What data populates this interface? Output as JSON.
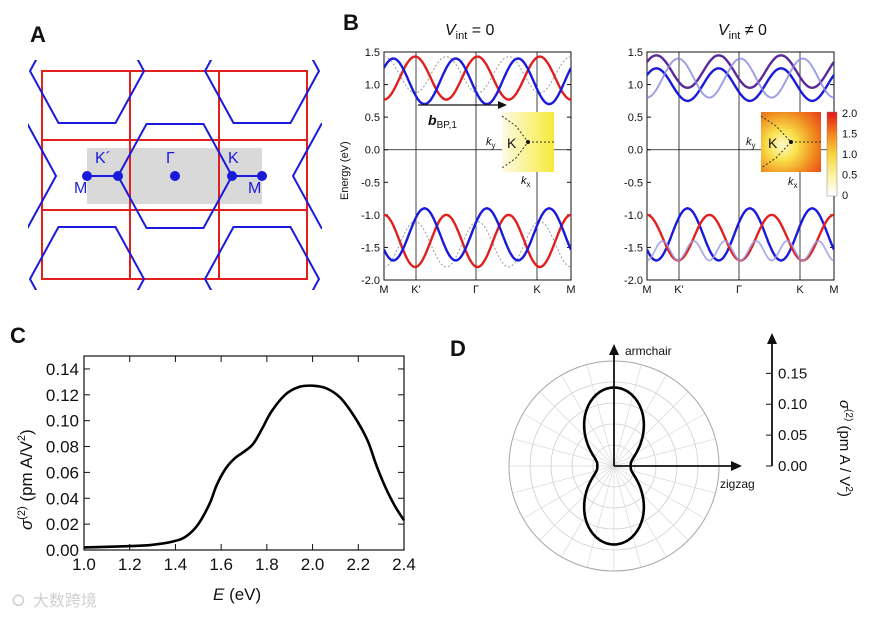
{
  "panel_labels": {
    "a": "A",
    "b": "B",
    "c": "C",
    "d": "D"
  },
  "panel_a": {
    "points": {
      "kprime": "K´",
      "gamma": "Γ",
      "k": "K",
      "m_left": "M",
      "m_right": "M"
    },
    "colors": {
      "hexagons": "#1a1adb",
      "rectangles": "#e0201f",
      "path": "#1a1adb",
      "shaded": "#d9d9d9"
    }
  },
  "panel_b": {
    "title_left_sym": "V",
    "title_left_sub": "int",
    "title_left_rest": " = 0",
    "title_right_sym": "V",
    "title_right_sub": "int",
    "title_right_rest": " ≠ 0",
    "ylabel": "Energy (eV)",
    "yticks": [
      "1.5",
      "1.0",
      "0.5",
      "0.0",
      "-0.5",
      "-1.0",
      "-1.5",
      "-2.0"
    ],
    "xticks": [
      "M",
      "K'",
      "Γ",
      "K",
      "M"
    ],
    "arrow_label_sym": "b",
    "arrow_label_sub": "BP,1",
    "inset_ky": "k",
    "inset_ky_sub": "y",
    "inset_kx": "k",
    "inset_kx_sub": "x",
    "inset_k": "K",
    "colorbar_ticks": [
      "2.0",
      "1.5",
      "1.0",
      "0.5",
      "0"
    ]
  },
  "panel_c": {
    "ylabel_sym": "σ",
    "ylabel_sup": "(2)",
    "ylabel_rest": " (pm A/V",
    "ylabel_sup2": "2",
    "ylabel_end": ")",
    "xlabel_sym": "E",
    "xlabel_rest": " (eV)"
  },
  "panel_d": {
    "axis_armchair": "armchair",
    "axis_zigzag": "zigzag",
    "ylabel_sym": "σ",
    "ylabel_sup": "(2)",
    "ylabel_rest": " (pm A / V",
    "ylabel_sup2": "2",
    "ylabel_end": ")",
    "scale_ticks": [
      "0.15",
      "0.10",
      "0.05",
      "0.00"
    ]
  },
  "watermark": "大数跨境",
  "chart_data": [
    {
      "type": "line",
      "title": "",
      "xlabel": "E (eV)",
      "ylabel": "σ(2) (pm A/V2)",
      "xlim": [
        1.0,
        2.4
      ],
      "ylim": [
        0.0,
        0.15
      ],
      "xticks": [
        "1.0",
        "1.2",
        "1.4",
        "1.6",
        "1.8",
        "2.0",
        "2.2",
        "2.4"
      ],
      "yticks": [
        "0.00",
        "0.02",
        "0.04",
        "0.06",
        "0.08",
        "0.10",
        "0.12",
        "0.14"
      ],
      "x": [
        1.0,
        1.1,
        1.2,
        1.3,
        1.4,
        1.45,
        1.5,
        1.55,
        1.58,
        1.62,
        1.66,
        1.7,
        1.74,
        1.78,
        1.82,
        1.88,
        1.94,
        2.0,
        2.06,
        2.12,
        2.18,
        2.24,
        2.28,
        2.32,
        2.36,
        2.4
      ],
      "y": [
        0.002,
        0.0025,
        0.003,
        0.004,
        0.007,
        0.011,
        0.02,
        0.036,
        0.05,
        0.063,
        0.071,
        0.076,
        0.082,
        0.094,
        0.107,
        0.12,
        0.126,
        0.127,
        0.125,
        0.118,
        0.104,
        0.085,
        0.065,
        0.048,
        0.034,
        0.023
      ],
      "color": "#000000"
    },
    {
      "type": "polar",
      "title": "",
      "axes": [
        "armchair",
        "zigzag"
      ],
      "rlim": [
        0.0,
        0.17
      ],
      "rticks": [
        "0.15",
        "0.10",
        "0.05",
        "0.00"
      ],
      "angle_deg": [
        0,
        30,
        60,
        90,
        120,
        150,
        180,
        210,
        240,
        270,
        300,
        330
      ],
      "r": [
        0.027,
        0.053,
        0.11,
        0.127,
        0.11,
        0.053,
        0.027,
        0.053,
        0.11,
        0.127,
        0.11,
        0.053
      ],
      "color": "#000000"
    }
  ]
}
